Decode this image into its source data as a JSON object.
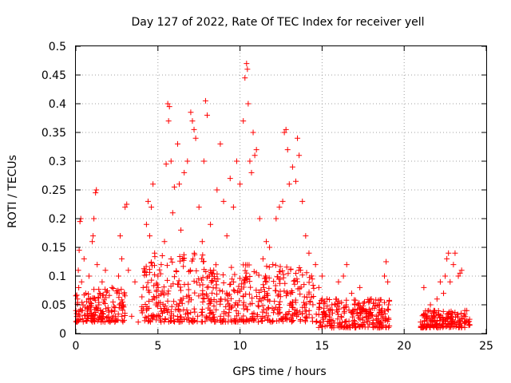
{
  "chart_data": {
    "type": "scatter",
    "title": "Day 127 of 2022, Rate Of TEC Index for receiver yell",
    "xlabel": "GPS time / hours",
    "ylabel": "ROTI / TECUs",
    "xlim": [
      0,
      25
    ],
    "ylim": [
      0,
      0.5
    ],
    "xticks": [
      "0",
      "5",
      "10",
      "15",
      "20",
      "25"
    ],
    "yticks": [
      "0",
      "0.05",
      "0.1",
      "0.15",
      "0.2",
      "0.25",
      "0.3",
      "0.35",
      "0.4",
      "0.45",
      "0.5"
    ],
    "grid": true,
    "marker": "+",
    "color": "#ff0000",
    "series": [
      {
        "points": [
          [
            0.05,
            0.02
          ],
          [
            0.1,
            0.06
          ],
          [
            0.15,
            0.11
          ],
          [
            0.2,
            0.145
          ],
          [
            0.25,
            0.195
          ],
          [
            0.3,
            0.2
          ],
          [
            0.35,
            0.09
          ],
          [
            0.4,
            0.04
          ],
          [
            0.5,
            0.13
          ],
          [
            0.6,
            0.07
          ],
          [
            0.7,
            0.03
          ],
          [
            0.8,
            0.1
          ],
          [
            0.9,
            0.06
          ],
          [
            1.0,
            0.16
          ],
          [
            1.05,
            0.17
          ],
          [
            1.1,
            0.2
          ],
          [
            1.2,
            0.245
          ],
          [
            1.25,
            0.25
          ],
          [
            1.3,
            0.12
          ],
          [
            1.4,
            0.05
          ],
          [
            1.6,
            0.09
          ],
          [
            1.8,
            0.11
          ],
          [
            2.0,
            0.04
          ],
          [
            2.2,
            0.08
          ],
          [
            2.4,
            0.03
          ],
          [
            2.6,
            0.1
          ],
          [
            2.7,
            0.17
          ],
          [
            2.8,
            0.13
          ],
          [
            2.9,
            0.05
          ],
          [
            3.0,
            0.22
          ],
          [
            3.1,
            0.225
          ],
          [
            3.2,
            0.11
          ],
          [
            3.4,
            0.03
          ],
          [
            3.6,
            0.09
          ],
          [
            3.8,
            0.02
          ],
          [
            4.0,
            0.04
          ],
          [
            4.1,
            0.08
          ],
          [
            4.2,
            0.11
          ],
          [
            4.3,
            0.19
          ],
          [
            4.4,
            0.23
          ],
          [
            4.5,
            0.17
          ],
          [
            4.6,
            0.22
          ],
          [
            4.7,
            0.26
          ],
          [
            4.8,
            0.14
          ],
          [
            4.9,
            0.05
          ],
          [
            5.0,
            0.1
          ],
          [
            5.2,
            0.12
          ],
          [
            5.4,
            0.16
          ],
          [
            5.5,
            0.295
          ],
          [
            5.6,
            0.4
          ],
          [
            5.65,
            0.37
          ],
          [
            5.7,
            0.395
          ],
          [
            5.8,
            0.3
          ],
          [
            5.9,
            0.21
          ],
          [
            6.0,
            0.255
          ],
          [
            6.2,
            0.33
          ],
          [
            6.3,
            0.26
          ],
          [
            6.4,
            0.18
          ],
          [
            6.5,
            0.13
          ],
          [
            6.6,
            0.28
          ],
          [
            6.8,
            0.3
          ],
          [
            7.0,
            0.385
          ],
          [
            7.1,
            0.37
          ],
          [
            7.2,
            0.355
          ],
          [
            7.3,
            0.34
          ],
          [
            7.5,
            0.22
          ],
          [
            7.7,
            0.16
          ],
          [
            7.8,
            0.3
          ],
          [
            7.9,
            0.405
          ],
          [
            8.0,
            0.38
          ],
          [
            8.2,
            0.19
          ],
          [
            8.4,
            0.11
          ],
          [
            8.6,
            0.25
          ],
          [
            8.8,
            0.33
          ],
          [
            9.0,
            0.23
          ],
          [
            9.2,
            0.17
          ],
          [
            9.4,
            0.27
          ],
          [
            9.6,
            0.22
          ],
          [
            9.8,
            0.3
          ],
          [
            10.0,
            0.26
          ],
          [
            10.2,
            0.37
          ],
          [
            10.3,
            0.445
          ],
          [
            10.4,
            0.47
          ],
          [
            10.45,
            0.46
          ],
          [
            10.5,
            0.4
          ],
          [
            10.6,
            0.3
          ],
          [
            10.7,
            0.28
          ],
          [
            10.8,
            0.35
          ],
          [
            10.9,
            0.31
          ],
          [
            11.0,
            0.32
          ],
          [
            11.2,
            0.2
          ],
          [
            11.4,
            0.13
          ],
          [
            11.6,
            0.16
          ],
          [
            11.8,
            0.15
          ],
          [
            12.0,
            0.12
          ],
          [
            12.2,
            0.2
          ],
          [
            12.4,
            0.22
          ],
          [
            12.6,
            0.23
          ],
          [
            12.7,
            0.35
          ],
          [
            12.8,
            0.355
          ],
          [
            12.9,
            0.32
          ],
          [
            13.0,
            0.26
          ],
          [
            13.2,
            0.29
          ],
          [
            13.4,
            0.265
          ],
          [
            13.5,
            0.34
          ],
          [
            13.6,
            0.31
          ],
          [
            13.8,
            0.23
          ],
          [
            14.0,
            0.17
          ],
          [
            14.2,
            0.14
          ],
          [
            14.4,
            0.095
          ],
          [
            14.6,
            0.12
          ],
          [
            14.8,
            0.08
          ],
          [
            15.0,
            0.1
          ],
          [
            15.3,
            0.06
          ],
          [
            15.6,
            0.05
          ],
          [
            16.0,
            0.09
          ],
          [
            16.3,
            0.1
          ],
          [
            16.5,
            0.12
          ],
          [
            16.8,
            0.07
          ],
          [
            17.0,
            0.05
          ],
          [
            17.3,
            0.08
          ],
          [
            17.6,
            0.04
          ],
          [
            18.0,
            0.06
          ],
          [
            18.3,
            0.03
          ],
          [
            18.5,
            0.05
          ],
          [
            18.8,
            0.1
          ],
          [
            18.9,
            0.125
          ],
          [
            19.0,
            0.09
          ],
          [
            19.05,
            0.05
          ],
          [
            21.0,
            0.02
          ],
          [
            21.2,
            0.08
          ],
          [
            21.4,
            0.03
          ],
          [
            21.6,
            0.05
          ],
          [
            21.8,
            0.04
          ],
          [
            22.0,
            0.06
          ],
          [
            22.2,
            0.09
          ],
          [
            22.4,
            0.07
          ],
          [
            22.5,
            0.1
          ],
          [
            22.6,
            0.13
          ],
          [
            22.7,
            0.14
          ],
          [
            22.8,
            0.09
          ],
          [
            23.0,
            0.12
          ],
          [
            23.1,
            0.14
          ],
          [
            23.3,
            0.1
          ],
          [
            23.4,
            0.105
          ],
          [
            23.5,
            0.11
          ],
          [
            23.7,
            0.04
          ],
          [
            23.9,
            0.02
          ],
          [
            24.0,
            0.015
          ]
        ]
      }
    ]
  }
}
